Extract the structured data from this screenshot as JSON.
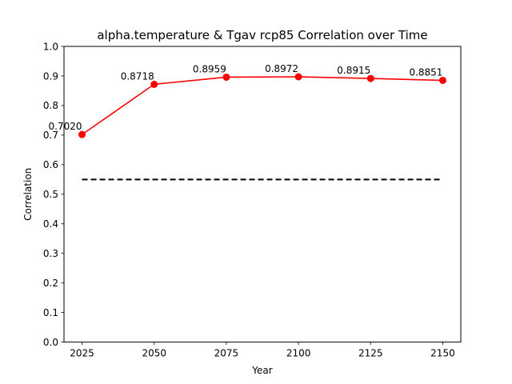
{
  "chart_data": {
    "type": "line",
    "title": "alpha.temperature & Tgav rcp85 Correlation over Time",
    "xlabel": "Year",
    "ylabel": "Correlation",
    "x": [
      2025,
      2050,
      2075,
      2100,
      2125,
      2150
    ],
    "series": [
      {
        "values": [
          0.702,
          0.8718,
          0.8959,
          0.8972,
          0.8915,
          0.8851
        ],
        "color": "#ff0000",
        "marker": "circle"
      }
    ],
    "data_labels": [
      "0.7020",
      "0.8718",
      "0.8959",
      "0.8972",
      "0.8915",
      "0.8851"
    ],
    "reference_line": {
      "y": 0.55,
      "x_range": [
        2025,
        2150
      ],
      "style": "dashed",
      "color": "#000000"
    },
    "xticks": [
      "2025",
      "2050",
      "2075",
      "2100",
      "2125",
      "2150"
    ],
    "yticks": [
      "0.0",
      "0.1",
      "0.2",
      "0.3",
      "0.4",
      "0.5",
      "0.6",
      "0.7",
      "0.8",
      "0.9",
      "1.0"
    ],
    "xlim": [
      2018.75,
      2156.25
    ],
    "ylim": [
      0,
      1
    ],
    "grid": false,
    "legend": "none"
  }
}
